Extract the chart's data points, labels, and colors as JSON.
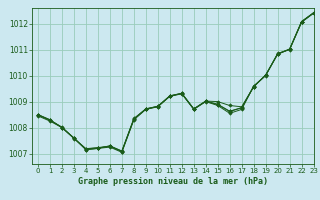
{
  "title": "Graphe pression niveau de la mer (hPa)",
  "background_color": "#cce8f0",
  "grid_color": "#99ccbb",
  "line_color": "#1a5c1a",
  "marker_color": "#1a5c1a",
  "xlim": [
    -0.5,
    23
  ],
  "ylim": [
    1006.6,
    1012.6
  ],
  "yticks": [
    1007,
    1008,
    1009,
    1010,
    1011,
    1012
  ],
  "xticks": [
    0,
    1,
    2,
    3,
    4,
    5,
    6,
    7,
    8,
    9,
    10,
    11,
    12,
    13,
    14,
    15,
    16,
    17,
    18,
    19,
    20,
    21,
    22,
    23
  ],
  "series": [
    [
      1008.5,
      1008.3,
      1008.0,
      1007.6,
      1007.15,
      1007.2,
      1007.25,
      1007.05,
      1008.3,
      1008.7,
      1008.8,
      1009.2,
      1009.3,
      1008.7,
      1009.0,
      1008.85,
      1008.55,
      1008.7,
      1009.6,
      1010.0,
      1010.85,
      1011.0,
      1012.05,
      1012.4
    ],
    [
      1008.5,
      1008.3,
      1008.0,
      1007.6,
      1007.15,
      1007.2,
      1007.3,
      1007.1,
      1008.35,
      1008.72,
      1008.82,
      1009.22,
      1009.32,
      1008.72,
      1009.02,
      1009.0,
      1008.85,
      1008.8,
      1009.58,
      1010.02,
      1010.82,
      1011.02,
      1012.08,
      1012.42
    ],
    [
      1008.45,
      1008.25,
      1008.0,
      1007.58,
      1007.18,
      1007.22,
      1007.28,
      1007.08,
      1008.32,
      1008.71,
      1008.81,
      1009.21,
      1009.31,
      1008.71,
      1009.01,
      1008.88,
      1008.62,
      1008.76,
      1009.57,
      1010.01,
      1010.83,
      1011.01,
      1012.07,
      1012.41
    ],
    [
      1008.48,
      1008.28,
      1008.02,
      1007.59,
      1007.19,
      1007.23,
      1007.29,
      1007.09,
      1008.33,
      1008.72,
      1008.82,
      1009.22,
      1009.32,
      1008.72,
      1009.02,
      1008.9,
      1008.63,
      1008.77,
      1009.58,
      1010.02,
      1010.84,
      1011.02,
      1012.08,
      1012.41
    ]
  ]
}
